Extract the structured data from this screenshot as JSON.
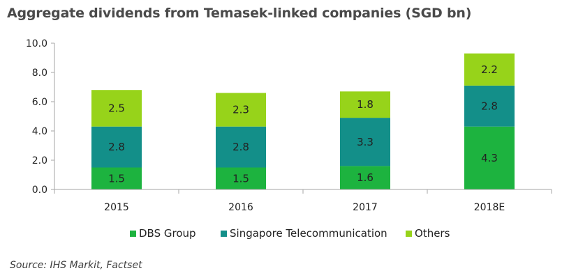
{
  "title": "Aggregate dividends from Temasek-linked companies (SGD bn)",
  "source": "Source: IHS Markit, Factset",
  "colors": {
    "DBS Group": "#1db33f",
    "Singapore Telecommunication": "#138f89",
    "Others": "#97d31a",
    "axis": "#a6a6a6",
    "grid": "#d9d9d9"
  },
  "chart_data": {
    "type": "bar",
    "stacked": true,
    "categories": [
      "2015",
      "2016",
      "2017",
      "2018E"
    ],
    "series": [
      {
        "name": "DBS Group",
        "values": [
          1.5,
          1.5,
          1.6,
          4.3
        ]
      },
      {
        "name": "Singapore Telecommunication",
        "values": [
          2.8,
          2.8,
          3.3,
          2.8
        ]
      },
      {
        "name": "Others",
        "values": [
          2.5,
          2.3,
          1.8,
          2.2
        ]
      }
    ],
    "ylim": [
      0,
      10
    ],
    "yticks": [
      "0.0",
      "2.0",
      "4.0",
      "6.0",
      "8.0",
      "10.0"
    ],
    "title": "Aggregate dividends from Temasek-linked companies (SGD bn)",
    "xlabel": "",
    "ylabel": "",
    "legend_position": "bottom",
    "grid": false
  }
}
